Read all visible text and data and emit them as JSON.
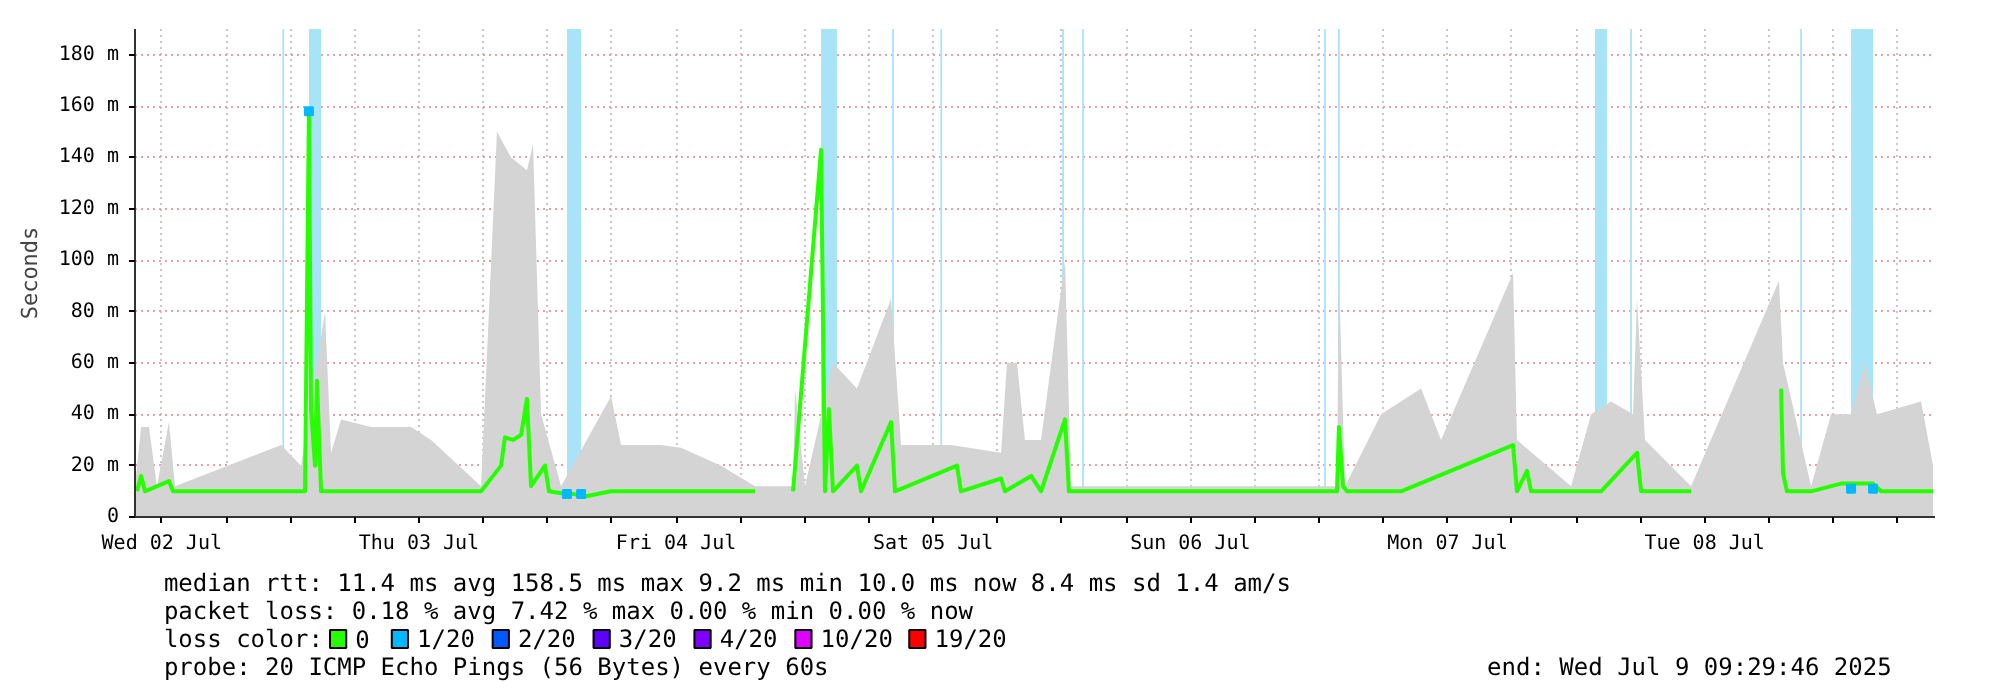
{
  "chart_data": {
    "type": "line",
    "ylabel": "Seconds",
    "legend_title": "loss color:",
    "legend": "bottom",
    "grid": true,
    "xlim": [
      "2025-07-02T09:30",
      "2025-07-09T09:30"
    ],
    "xticks": [
      {
        "value": "2025-07-02T12:00",
        "label": "Wed 02 Jul"
      },
      {
        "value": "2025-07-02T18:00",
        "label": null
      },
      {
        "value": "2025-07-03T00:00",
        "label": null
      },
      {
        "value": "2025-07-03T06:00",
        "label": null
      },
      {
        "value": "2025-07-03T12:00",
        "label": "Thu 03 Jul"
      },
      {
        "value": "2025-07-03T18:00",
        "label": null
      },
      {
        "value": "2025-07-04T00:00",
        "label": null
      },
      {
        "value": "2025-07-04T06:00",
        "label": null
      },
      {
        "value": "2025-07-04T12:00",
        "label": "Fri 04 Jul"
      },
      {
        "value": "2025-07-04T18:00",
        "label": null
      },
      {
        "value": "2025-07-05T00:00",
        "label": null
      },
      {
        "value": "2025-07-05T06:00",
        "label": null
      },
      {
        "value": "2025-07-05T12:00",
        "label": "Sat 05 Jul"
      },
      {
        "value": "2025-07-05T18:00",
        "label": null
      },
      {
        "value": "2025-07-06T00:00",
        "label": null
      },
      {
        "value": "2025-07-06T06:00",
        "label": null
      },
      {
        "value": "2025-07-06T12:00",
        "label": "Sun 06 Jul"
      },
      {
        "value": "2025-07-06T18:00",
        "label": null
      },
      {
        "value": "2025-07-07T00:00",
        "label": null
      },
      {
        "value": "2025-07-07T06:00",
        "label": null
      },
      {
        "value": "2025-07-07T12:00",
        "label": "Mon 07 Jul"
      },
      {
        "value": "2025-07-07T18:00",
        "label": null
      },
      {
        "value": "2025-07-08T00:00",
        "label": null
      },
      {
        "value": "2025-07-08T06:00",
        "label": null
      },
      {
        "value": "2025-07-08T12:00",
        "label": "Tue 08 Jul"
      },
      {
        "value": "2025-07-08T18:00",
        "label": null
      },
      {
        "value": "2025-07-09T00:00",
        "label": null
      },
      {
        "value": "2025-07-09T06:00",
        "label": null
      }
    ],
    "ylim": [
      0,
      190
    ],
    "yticks": [
      0,
      {
        "value": 20,
        "label": "20 m"
      },
      {
        "value": 40,
        "label": "40 m"
      },
      {
        "value": 60,
        "label": "60 m"
      },
      {
        "value": 80,
        "label": "80 m"
      },
      {
        "value": 100,
        "label": "100 m"
      },
      {
        "value": 120,
        "label": "120 m"
      },
      {
        "value": 140,
        "label": "140 m"
      },
      {
        "value": 160,
        "label": "160 m"
      },
      {
        "value": 180,
        "label": "180 m"
      }
    ],
    "bands": [
      {
        "axis": "x",
        "from": "2025-07-02T23:15",
        "to": "2025-07-02T23:25",
        "color": "#a8e4f8"
      },
      {
        "axis": "x",
        "from": "2025-07-03T01:44",
        "to": "2025-07-03T02:52",
        "color": "#a8e4f8"
      },
      {
        "axis": "x",
        "from": "2025-07-04T01:49",
        "to": "2025-07-04T03:08",
        "color": "#a8e4f8"
      },
      {
        "axis": "x",
        "from": "2025-07-05T01:32",
        "to": "2025-07-05T03:01",
        "color": "#a8e4f8"
      },
      {
        "axis": "x",
        "from": "2025-07-05T08:10",
        "to": "2025-07-05T08:20",
        "color": "#a8e4f8"
      },
      {
        "axis": "x",
        "from": "2025-07-05T12:40",
        "to": "2025-07-05T12:50",
        "color": "#a8e4f8"
      },
      {
        "axis": "x",
        "from": "2025-07-06T00:02",
        "to": "2025-07-06T00:12",
        "color": "#a8e4f8"
      },
      {
        "axis": "x",
        "from": "2025-07-06T01:54",
        "to": "2025-07-06T02:04",
        "color": "#a8e4f8"
      },
      {
        "axis": "x",
        "from": "2025-07-07T00:29",
        "to": "2025-07-07T00:39",
        "color": "#a8e4f8"
      },
      {
        "axis": "x",
        "from": "2025-07-07T01:47",
        "to": "2025-07-07T01:57",
        "color": "#a8e4f8"
      },
      {
        "axis": "x",
        "from": "2025-07-08T01:46",
        "to": "2025-07-08T02:53",
        "color": "#a8e4f8"
      },
      {
        "axis": "x",
        "from": "2025-07-08T05:03",
        "to": "2025-07-08T05:13",
        "color": "#a8e4f8"
      },
      {
        "axis": "x",
        "from": "2025-07-08T20:55",
        "to": "2025-07-08T21:05",
        "color": "#a8e4f8"
      },
      {
        "axis": "x",
        "from": "2025-07-09T01:40",
        "to": "2025-07-09T03:43",
        "color": "#a8e4f8"
      }
    ],
    "series": [
      {
        "type": "area",
        "color": "#d4d4d4",
        "x": [
          "2025-07-02T09:30",
          "2025-07-02T10:04",
          "2025-07-02T10:48",
          "2025-07-02T11:33",
          "2025-07-02T12:40",
          "2025-07-02T13:14",
          "2025-07-02T23:08",
          "2025-07-03T01:00",
          "2025-07-03T01:33",
          "2025-07-03T02:52",
          "2025-07-03T03:14",
          "2025-07-03T03:48",
          "2025-07-03T04:44",
          "2025-07-03T07:32",
          "2025-07-03T11:16",
          "2025-07-03T13:08",
          "2025-07-03T17:48",
          "2025-07-03T19:17",
          "2025-07-03T20:36",
          "2025-07-03T22:05",
          "2025-07-03T22:39",
          "2025-07-03T23:24",
          "2025-07-04T01:16",
          "2025-07-04T05:56",
          "2025-07-04T06:52",
          "2025-07-04T10:35",
          "2025-07-04T12:28",
          "2025-07-04T16:12",
          "2025-07-04T19:22",
          "2025-07-04T19:33",
          "2025-07-04T22:55",
          "2025-07-04T23:06",
          "2025-07-05T00:02",
          "2025-07-05T01:32",
          "2025-07-05T02:39",
          "2025-07-05T04:53",
          "2025-07-05T08:04",
          "2025-07-05T09:00",
          "2025-07-05T13:40",
          "2025-07-05T18:20",
          "2025-07-05T18:53",
          "2025-07-05T19:49",
          "2025-07-05T20:34",
          "2025-07-05T22:04",
          "2025-07-06T00:18",
          "2025-07-06T00:52",
          "2025-07-06T05:32",
          "2025-07-06T20:28",
          "2025-07-07T00:12",
          "2025-07-07T01:41",
          "2025-07-07T01:52",
          "2025-07-07T02:26",
          "2025-07-07T05:48",
          "2025-07-07T09:32",
          "2025-07-07T11:24",
          "2025-07-07T18:07",
          "2025-07-07T18:29",
          "2025-07-07T23:32",
          "2025-07-08T01:24",
          "2025-07-08T03:16",
          "2025-07-08T05:19",
          "2025-07-08T05:41",
          "2025-07-08T06:26",
          "2025-07-08T10:44",
          "2025-07-08T10:55",
          "2025-07-08T18:56",
          "2025-07-08T19:19",
          "2025-07-08T21:56",
          "2025-07-08T23:48",
          "2025-07-09T01:40",
          "2025-07-09T02:58",
          "2025-07-09T04:05",
          "2025-07-09T08:12",
          "2025-07-09T09:19"
        ],
        "values": [
          12,
          35,
          35,
          12,
          37,
          12,
          28,
          20,
          null,
          null,
          80,
          25,
          38,
          35,
          35,
          30,
          12,
          150,
          140,
          135,
          145,
          40,
          12,
          47,
          28,
          28,
          27,
          20,
          12,
          null,
          12,
          50,
          12,
          null,
          60,
          50,
          85,
          28,
          28,
          25,
          60,
          60,
          30,
          30,
          100,
          12,
          12,
          12,
          12,
          12,
          95,
          12,
          40,
          50,
          30,
          95,
          30,
          12,
          40,
          45,
          40,
          85,
          30,
          12,
          null,
          92,
          60,
          12,
          40,
          40,
          60,
          40,
          45,
          20
        ]
      },
      {
        "name": "0",
        "color": "#26ff00",
        "x": [
          "2025-07-02T09:41",
          "2025-07-02T10:04",
          "2025-07-02T10:26",
          "2025-07-02T12:40",
          "2025-07-02T13:03",
          "2025-07-02T23:08",
          "2025-07-03T01:22",
          "2025-07-03T01:44",
          "2025-07-03T01:56",
          "2025-07-03T02:18",
          "2025-07-03T02:29",
          "2025-07-03T02:52",
          "2025-07-03T10:20",
          "2025-07-03T17:48",
          "2025-07-03T19:40",
          "2025-07-03T20:02",
          "2025-07-03T20:47",
          "2025-07-03T21:32",
          "2025-07-03T22:05",
          "2025-07-03T22:28",
          "2025-07-03T23:46",
          "2025-07-04T00:08",
          "2025-07-04T01:38",
          "2025-07-04T02:23",
          "2025-07-04T03:30",
          "2025-07-04T05:56",
          "2025-07-04T10:35",
          "2025-07-04T16:12",
          "2025-07-04T19:22",
          "2025-07-04T19:33",
          "2025-07-04T22:55",
          "2025-07-05T01:32",
          "2025-07-05T01:54",
          "2025-07-05T02:16",
          "2025-07-05T02:39",
          "2025-07-05T04:53",
          "2025-07-05T05:16",
          "2025-07-05T08:04",
          "2025-07-05T08:26",
          "2025-07-05T14:13",
          "2025-07-05T14:35",
          "2025-07-05T18:20",
          "2025-07-05T18:42",
          "2025-07-05T21:08",
          "2025-07-05T22:04",
          "2025-07-06T00:18",
          "2025-07-06T00:40",
          "2025-07-06T05:32",
          "2025-07-06T13:00",
          "2025-07-06T22:20",
          "2025-07-07T01:41",
          "2025-07-07T01:52",
          "2025-07-07T02:15",
          "2025-07-07T02:37",
          "2025-07-07T07:40",
          "2025-07-07T18:07",
          "2025-07-07T18:29",
          "2025-07-07T19:25",
          "2025-07-07T19:48",
          "2025-07-08T02:20",
          "2025-07-08T05:41",
          "2025-07-08T06:04",
          "2025-07-08T10:44",
          "2025-07-08T10:55",
          "2025-07-08T19:08",
          "2025-07-08T19:19",
          "2025-07-08T19:41",
          "2025-07-08T21:56",
          "2025-07-09T00:44",
          "2025-07-09T03:43",
          "2025-07-09T04:28",
          "2025-07-09T09:19"
        ],
        "values": [
          10,
          16,
          10,
          14,
          10,
          10,
          10,
          158,
          42,
          20,
          53,
          10,
          10,
          10,
          20,
          31,
          30,
          32,
          46,
          12,
          20,
          10,
          9,
          9,
          8,
          10,
          10,
          10,
          10,
          null,
          10,
          143,
          10,
          42,
          10,
          20,
          10,
          37,
          10,
          20,
          10,
          15,
          10,
          16,
          10,
          38,
          10,
          10,
          10,
          10,
          10,
          35,
          12,
          10,
          10,
          28,
          10,
          18,
          10,
          10,
          25,
          10,
          10,
          null,
          50,
          17,
          10,
          10,
          13,
          13,
          10,
          10
        ]
      },
      {
        "name": "1/20",
        "type": "scatter",
        "marker": "square",
        "color": "#00b8ff",
        "x": [
          "2025-07-03T01:44",
          "2025-07-04T01:49",
          "2025-07-04T03:08",
          "2025-07-09T01:40",
          "2025-07-09T03:43"
        ],
        "values": [
          158,
          9,
          9,
          11,
          11
        ]
      },
      {
        "name": "2/20",
        "type": "scatter",
        "marker": "square",
        "color": "#0059ff"
      },
      {
        "name": "3/20",
        "type": "scatter",
        "marker": "square",
        "color": "#5e00ff"
      },
      {
        "name": "4/20",
        "type": "scatter",
        "marker": "square",
        "color": "#7e00ff"
      },
      {
        "name": "10/20",
        "type": "scatter",
        "marker": "square",
        "color": "#dd00ff"
      },
      {
        "name": "19/20",
        "type": "scatter",
        "marker": "square",
        "color": "#ff0000"
      }
    ],
    "annotations": [
      "median rtt:  11.4 ms avg  158.5 ms max  9.2 ms min  10.0 ms now  8.4 ms sd  1.4   am/s",
      "packet loss: 0.18 % avg  7.42 % max  0.00 % min  0.00 % now",
      "probe:       20 ICMP Echo Pings (56 Bytes) every 60s",
      "end: Wed Jul  9 09:29:46 2025"
    ]
  }
}
